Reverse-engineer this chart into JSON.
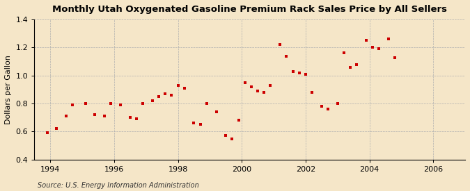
{
  "title": "Monthly Utah Oxygenated Gasoline Premium Rack Sales Price by All Sellers",
  "ylabel": "Dollars per Gallon",
  "source": "Source: U.S. Energy Information Administration",
  "background_color": "#f5e6c8",
  "plot_bg_color": "#f5e6c8",
  "marker_color": "#cc0000",
  "marker": "s",
  "marker_size": 3.5,
  "xlim": [
    1993.5,
    2007.0
  ],
  "ylim": [
    0.4,
    1.4
  ],
  "xticks": [
    1994,
    1996,
    1998,
    2000,
    2002,
    2004,
    2006
  ],
  "yticks": [
    0.4,
    0.6,
    0.8,
    1.0,
    1.2,
    1.4
  ],
  "data_x": [
    1993.9,
    1994.2,
    1994.5,
    1994.7,
    1995.1,
    1995.4,
    1995.7,
    1995.9,
    1996.2,
    1996.5,
    1996.7,
    1996.9,
    1997.2,
    1997.4,
    1997.6,
    1997.8,
    1998.0,
    1998.2,
    1998.5,
    1998.7,
    1998.9,
    1999.2,
    1999.5,
    1999.7,
    1999.9,
    2000.1,
    2000.3,
    2000.5,
    2000.7,
    2000.9,
    2001.2,
    2001.4,
    2001.6,
    2001.8,
    2002.0,
    2002.2,
    2002.5,
    2002.7,
    2003.0,
    2003.2,
    2003.4,
    2003.6,
    2003.9,
    2004.1,
    2004.3,
    2004.6,
    2004.8
  ],
  "data_y": [
    0.59,
    0.62,
    0.71,
    0.79,
    0.8,
    0.72,
    0.71,
    0.8,
    0.79,
    0.7,
    0.69,
    0.8,
    0.82,
    0.85,
    0.87,
    0.86,
    0.93,
    0.91,
    0.66,
    0.65,
    0.8,
    0.74,
    0.57,
    0.55,
    0.68,
    0.95,
    0.92,
    0.89,
    0.88,
    0.93,
    1.22,
    1.14,
    1.03,
    1.02,
    1.01,
    0.88,
    0.78,
    0.76,
    0.8,
    1.16,
    1.06,
    1.08,
    1.25,
    1.2,
    1.19,
    1.26,
    1.13
  ]
}
